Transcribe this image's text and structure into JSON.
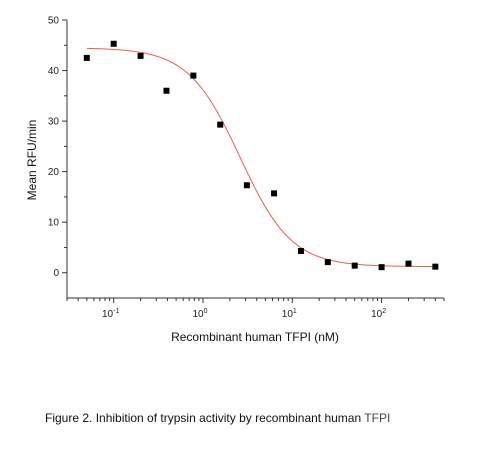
{
  "chart_data": {
    "type": "scatter",
    "xlabel": "Recombinant human TFPI (nM)",
    "ylabel": "Mean RFU/min",
    "x_scale": "log",
    "xlim": [
      0.03,
      500
    ],
    "ylim": [
      -5,
      50
    ],
    "y_ticks": [
      0,
      10,
      20,
      30,
      40,
      50
    ],
    "x_tick_labels": [
      {
        "x": 0.1,
        "base": "10",
        "exp": "-1"
      },
      {
        "x": 1,
        "base": "10",
        "exp": "0"
      },
      {
        "x": 10,
        "base": "10",
        "exp": "1"
      },
      {
        "x": 100,
        "base": "10",
        "exp": "2"
      }
    ],
    "grid": false,
    "series": [
      {
        "marker": "square",
        "color": "#000000",
        "points": [
          {
            "x": 0.05,
            "y": 42.5
          },
          {
            "x": 0.1,
            "y": 45.3
          },
          {
            "x": 0.2,
            "y": 42.9
          },
          {
            "x": 0.39,
            "y": 36.0
          },
          {
            "x": 0.78,
            "y": 39.0
          },
          {
            "x": 1.56,
            "y": 29.3
          },
          {
            "x": 3.1,
            "y": 17.3
          },
          {
            "x": 6.25,
            "y": 15.7
          },
          {
            "x": 12.5,
            "y": 4.3
          },
          {
            "x": 25,
            "y": 2.1
          },
          {
            "x": 50,
            "y": 1.4
          },
          {
            "x": 100,
            "y": 1.1
          },
          {
            "x": 200,
            "y": 1.8
          },
          {
            "x": 400,
            "y": 1.2
          }
        ]
      }
    ],
    "fit_curve": {
      "model": "four-parameter logistic",
      "color": "#e8604f",
      "top": 44.5,
      "bottom": 1.2,
      "ec50": 2.6,
      "hill": 1.5,
      "x_range": [
        0.05,
        420
      ]
    }
  },
  "caption": {
    "text_main": "Figure 2. Inhibition of trypsin activity by recombinant human ",
    "text_tail": "TFPI"
  }
}
